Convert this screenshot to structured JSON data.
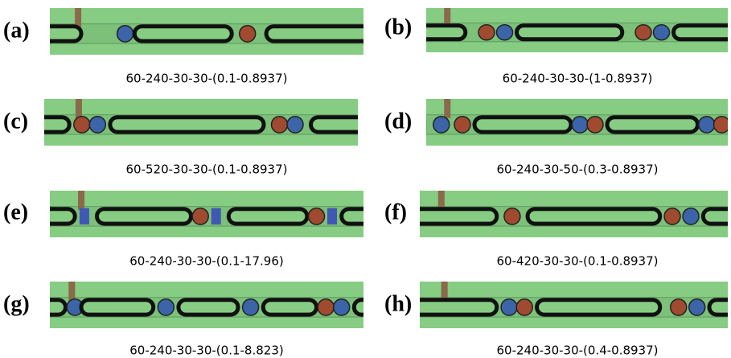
{
  "panels": [
    {
      "label": "(a)",
      "caption": "60-240-30-30-(0.1-0.8937)"
    },
    {
      "label": "(b)",
      "caption": "60-240-30-30-(1-0.8937)"
    },
    {
      "label": "(c)",
      "caption": "60-520-30-30-(0.1-0.8937)"
    },
    {
      "label": "(d)",
      "caption": "60-240-30-50-(0.3-0.8937)"
    },
    {
      "label": "(e)",
      "caption": "60-240-30-30-(0.1-17.96)"
    },
    {
      "label": "(f)",
      "caption": "60-420-30-30-(0.1-0.8937)"
    },
    {
      "label": "(g)",
      "caption": "60-240-30-30-(0.1-8.823)"
    },
    {
      "label": "(h)",
      "caption": "60-240-30-30-(0.4-0.8937)"
    }
  ]
}
